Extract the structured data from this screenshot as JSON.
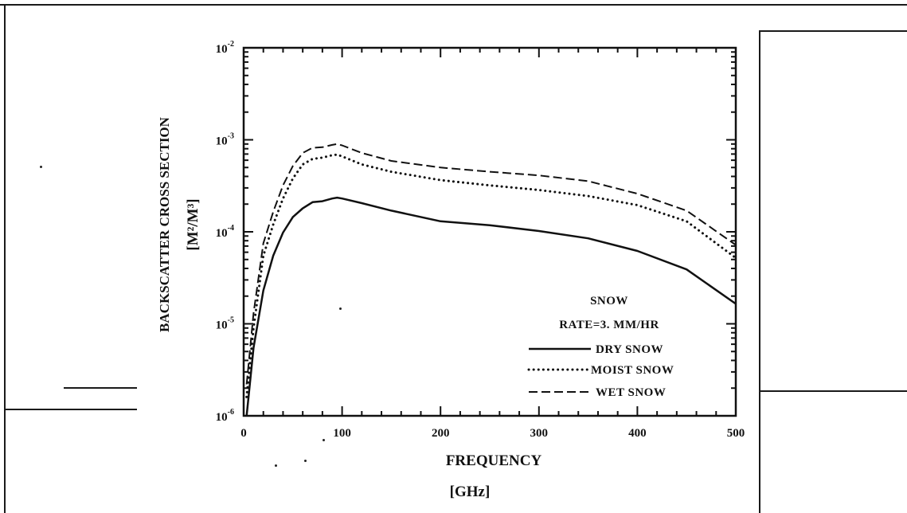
{
  "chart_data": {
    "type": "line",
    "xlabel": "FREQUENCY",
    "xunit": "[GHz]",
    "ylabel": "BACKSCATTER CROSS SECTION",
    "yunit": "[M²/M³]",
    "xlim": [
      0,
      500
    ],
    "ylim": [
      1e-06,
      0.01
    ],
    "yscale": "log",
    "x_ticks": [
      {
        "value": 0,
        "label": "0"
      },
      {
        "value": 100,
        "label": "100"
      },
      {
        "value": 200,
        "label": "200"
      },
      {
        "value": 300,
        "label": "300"
      },
      {
        "value": 400,
        "label": "400"
      },
      {
        "value": 500,
        "label": "500"
      }
    ],
    "y_ticks": [
      {
        "value": 0.01,
        "base": "10",
        "exp": "-2"
      },
      {
        "value": 0.001,
        "base": "10",
        "exp": "-3"
      },
      {
        "value": 0.0001,
        "base": "10",
        "exp": "-4"
      },
      {
        "value": 1e-05,
        "base": "10",
        "exp": "-5"
      },
      {
        "value": 1e-06,
        "base": "10",
        "exp": "-6"
      }
    ],
    "legend_title": "SNOW",
    "legend_subtitle": "RATE=3. MM/HR",
    "legend_position": "bottom-right",
    "series": [
      {
        "name": "DRY SNOW",
        "style": "solid",
        "color": "#111111",
        "x": [
          3,
          10,
          20,
          30,
          40,
          50,
          60,
          70,
          80,
          90,
          95,
          100,
          120,
          150,
          200,
          250,
          300,
          350,
          400,
          450,
          500
        ],
        "y": [
          1e-06,
          5.5e-06,
          2.3e-05,
          5.5e-05,
          9.8e-05,
          0.000145,
          0.00018,
          0.00021,
          0.000215,
          0.00023,
          0.000235,
          0.00023,
          0.000205,
          0.00017,
          0.00013,
          0.000118,
          0.000102,
          8.5e-05,
          6.2e-05,
          3.9e-05,
          1.65e-05
        ]
      },
      {
        "name": "MOIST SNOW",
        "style": "dotted",
        "color": "#111111",
        "x": [
          3,
          10,
          20,
          30,
          40,
          50,
          60,
          70,
          80,
          90,
          95,
          100,
          120,
          150,
          200,
          250,
          300,
          350,
          400,
          450,
          500
        ],
        "y": [
          1.6e-06,
          9e-06,
          5.5e-05,
          0.00012,
          0.00023,
          0.00038,
          0.00054,
          0.00062,
          0.00064,
          0.00068,
          0.00069,
          0.00066,
          0.00054,
          0.00045,
          0.000365,
          0.00032,
          0.000285,
          0.000245,
          0.000195,
          0.00013,
          5.2e-05
        ]
      },
      {
        "name": "WET SNOW",
        "style": "dashed",
        "color": "#111111",
        "x": [
          3,
          10,
          20,
          30,
          40,
          50,
          60,
          70,
          80,
          90,
          95,
          100,
          120,
          150,
          200,
          250,
          300,
          350,
          400,
          450,
          500
        ],
        "y": [
          2.2e-06,
          1.3e-05,
          7.5e-05,
          0.000165,
          0.00032,
          0.00052,
          0.00072,
          0.00082,
          0.00083,
          0.00088,
          0.0009,
          0.00087,
          0.00072,
          0.00059,
          0.0005,
          0.00045,
          0.00041,
          0.000355,
          0.00026,
          0.00017,
          7.2e-05
        ]
      }
    ]
  }
}
